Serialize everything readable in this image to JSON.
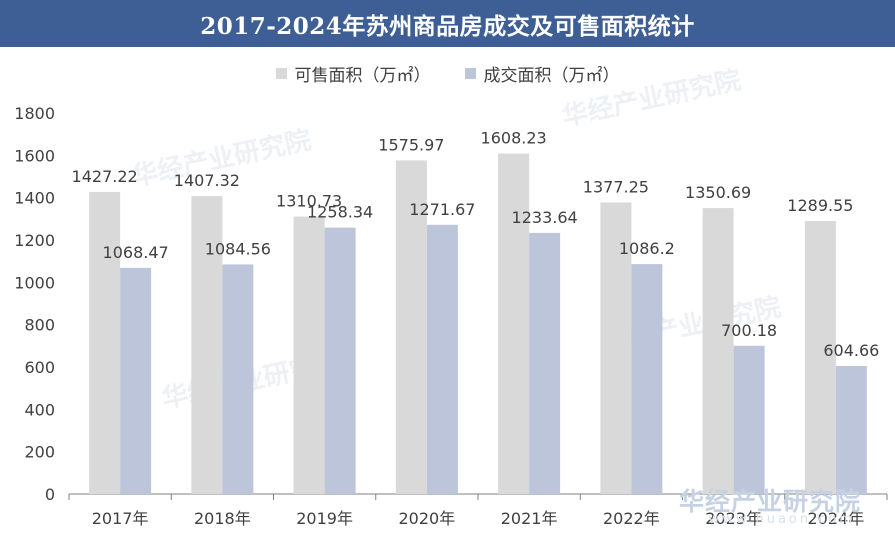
{
  "title": "2017-2024年苏州商品房成交及可售面积统计",
  "watermark": {
    "text": "华经产业研究院",
    "url": "www.huaon.com"
  },
  "colors": {
    "title_bg": "#3d5f95",
    "series_available": "#d9d9d9",
    "series_sold": "#bcc5da",
    "axis": "#808080"
  },
  "chart_data": {
    "type": "bar",
    "categories": [
      "2017年",
      "2018年",
      "2019年",
      "2020年",
      "2021年",
      "2022年",
      "2023年",
      "2024年"
    ],
    "series": [
      {
        "name": "可售面积（万㎡）",
        "values": [
          1427.22,
          1407.32,
          1310.73,
          1575.97,
          1608.23,
          1377.25,
          1350.69,
          1289.55
        ]
      },
      {
        "name": "成交面积（万㎡）",
        "values": [
          1068.47,
          1084.56,
          1258.34,
          1271.67,
          1233.64,
          1086.2,
          700.18,
          604.66
        ]
      }
    ],
    "ylim": [
      0,
      1800
    ],
    "yticks": [
      0,
      200,
      400,
      600,
      800,
      1000,
      1200,
      1400,
      1600,
      1800
    ],
    "grid": false,
    "legend": "top-center"
  }
}
